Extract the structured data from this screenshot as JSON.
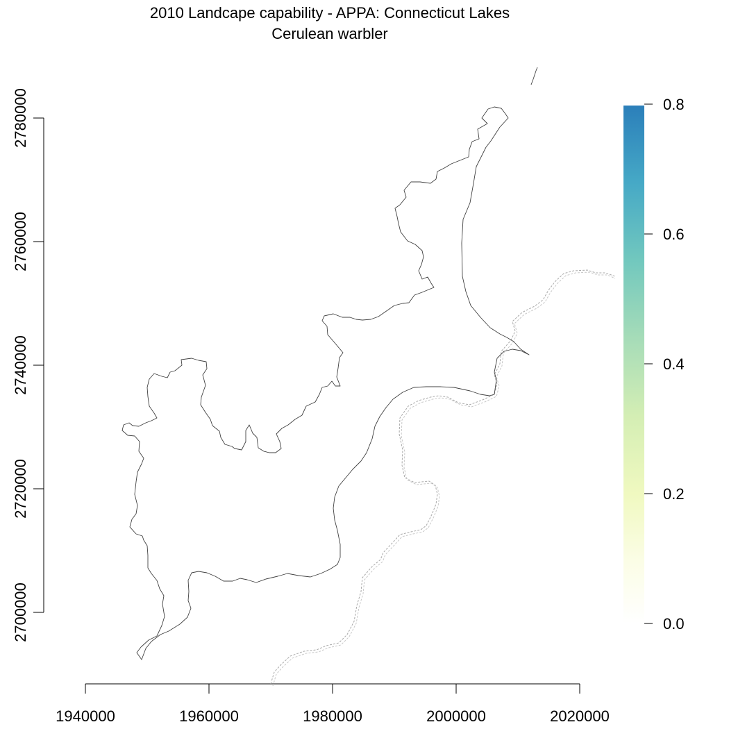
{
  "title": "2010 Landcape capability - APPA: Connecticut Lakes",
  "subtitle": "Cerulean warbler",
  "map": {
    "x_axis": {
      "ticks": [
        "1940000",
        "1960000",
        "1980000",
        "2000000",
        "2020000"
      ]
    },
    "y_axis": {
      "ticks": [
        "2700000",
        "2720000",
        "2740000",
        "2760000",
        "2780000"
      ]
    },
    "legend": {
      "ticks": [
        "0.0",
        "0.2",
        "0.4",
        "0.6",
        "0.8"
      ],
      "min": 0.0,
      "max": 0.8,
      "colors": [
        "#ffffff",
        "#fbfde0",
        "#edf8b1",
        "#c7e9b4",
        "#7fcdbb",
        "#41b6c4",
        "#2c7fb8"
      ]
    },
    "colors": {
      "boundary": "#404040",
      "state_line": "#a8a8a8"
    }
  }
}
